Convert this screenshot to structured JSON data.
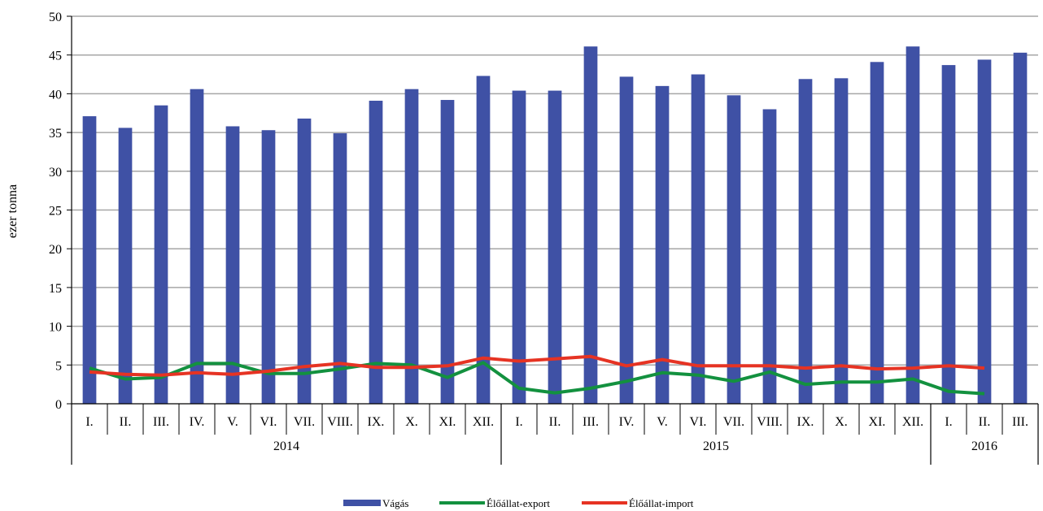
{
  "chart_data": {
    "type": "bar",
    "ylabel": "ezer tonna",
    "ylim": [
      0,
      50
    ],
    "yticks": [
      0,
      5,
      10,
      15,
      20,
      25,
      30,
      35,
      40,
      45,
      50
    ],
    "grid": true,
    "legend_position": "bottom",
    "categories": [
      "I.",
      "II.",
      "III.",
      "IV.",
      "V.",
      "VI.",
      "VII.",
      "VIII.",
      "IX.",
      "X.",
      "XI.",
      "XII.",
      "I.",
      "II.",
      "III.",
      "IV.",
      "V.",
      "VI.",
      "VII.",
      "VIII.",
      "IX.",
      "X.",
      "XI.",
      "XII.",
      "I.",
      "II.",
      "III."
    ],
    "years": [
      {
        "label": "2014",
        "count": 12
      },
      {
        "label": "2015",
        "count": 12
      },
      {
        "label": "2016",
        "count": 3
      }
    ],
    "series": [
      {
        "name": "Vágás",
        "type": "bar",
        "color": "#3f51a5",
        "values": [
          37.1,
          35.6,
          38.5,
          40.6,
          35.8,
          35.3,
          36.8,
          34.9,
          39.1,
          40.6,
          39.2,
          42.3,
          40.4,
          40.4,
          46.1,
          42.2,
          41.0,
          42.5,
          39.8,
          38.0,
          41.9,
          42.0,
          44.1,
          46.1,
          43.7,
          44.4,
          45.3
        ]
      },
      {
        "name": "Élőállat-export",
        "type": "line",
        "color": "#13913f",
        "values": [
          4.6,
          3.2,
          3.4,
          5.2,
          5.2,
          3.9,
          3.9,
          4.5,
          5.2,
          5.0,
          3.4,
          5.3,
          2.0,
          1.4,
          2.0,
          2.9,
          4.0,
          3.7,
          2.9,
          4.1,
          2.5,
          2.8,
          2.8,
          3.2,
          1.6,
          1.3,
          null
        ]
      },
      {
        "name": "Élőállat-import",
        "type": "line",
        "color": "#e63323",
        "values": [
          4.1,
          3.8,
          3.7,
          4.0,
          3.8,
          4.2,
          4.8,
          5.2,
          4.7,
          4.7,
          4.9,
          5.9,
          5.5,
          5.8,
          6.1,
          4.9,
          5.7,
          4.9,
          4.9,
          4.9,
          4.6,
          4.9,
          4.5,
          4.6,
          4.9,
          4.6,
          null
        ]
      }
    ]
  }
}
